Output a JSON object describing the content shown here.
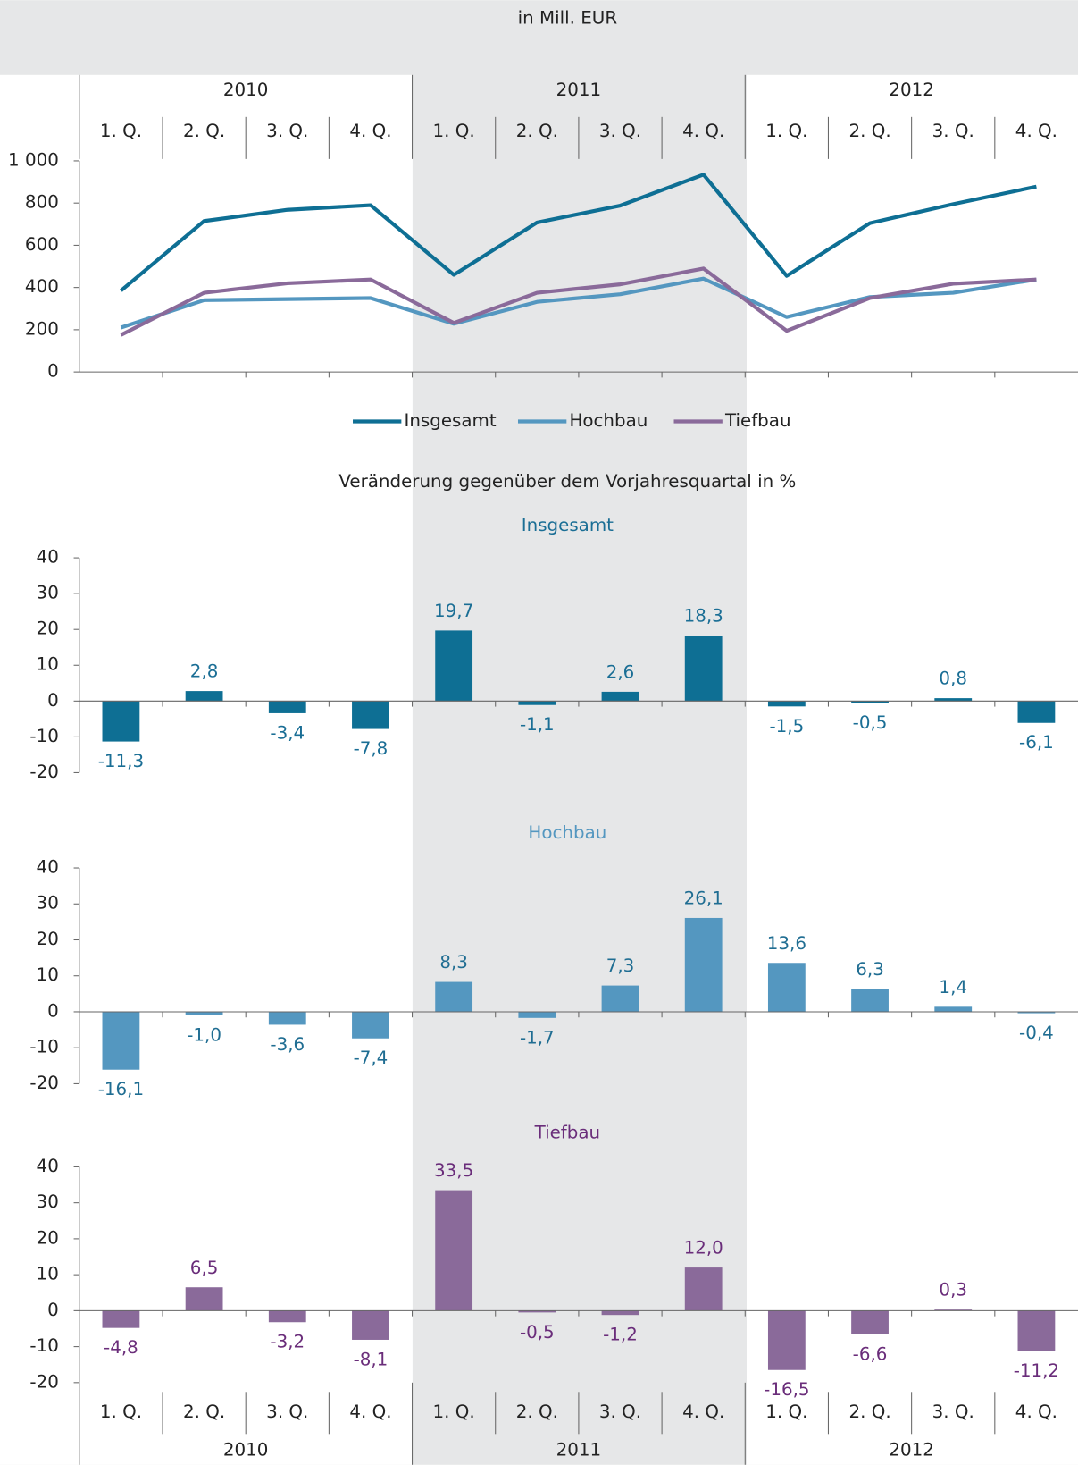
{
  "chart_data": [
    {
      "type": "line",
      "title": "in Mill. EUR",
      "years": [
        "2010",
        "2011",
        "2012"
      ],
      "categories": [
        "1. Q.",
        "2. Q.",
        "3. Q.",
        "4. Q.",
        "1. Q.",
        "2. Q.",
        "3. Q.",
        "4. Q.",
        "1. Q.",
        "2. Q.",
        "3. Q.",
        "4. Q."
      ],
      "series": [
        {
          "name": "Insgesamt",
          "color": "#0e6f94",
          "values": [
            385,
            715,
            768,
            790,
            460,
            708,
            788,
            935,
            455,
            705,
            795,
            878
          ]
        },
        {
          "name": "Hochbau",
          "color": "#5497c0",
          "values": [
            210,
            340,
            345,
            350,
            228,
            332,
            368,
            442,
            260,
            355,
            375,
            438
          ]
        },
        {
          "name": "Tiefbau",
          "color": "#8a6a9a",
          "values": [
            175,
            375,
            420,
            438,
            232,
            375,
            415,
            490,
            195,
            350,
            418,
            438
          ]
        }
      ],
      "ylim": [
        0,
        1000
      ],
      "yticks": [
        0,
        200,
        400,
        600,
        800,
        {
          "value": 1000,
          "label": "1 000"
        }
      ],
      "legend": "bottom"
    },
    {
      "type": "bar",
      "subtitle": "Veränderung gegenüber dem Vorjahresquartal in %",
      "title": "Insgesamt",
      "color": "#0e6f94",
      "label_color": "#1a6e95",
      "values": [
        -11.3,
        2.8,
        -3.4,
        -7.8,
        19.7,
        -1.1,
        2.6,
        18.3,
        -1.5,
        -0.5,
        0.8,
        -6.1
      ],
      "value_labels": [
        "-11,3",
        "2,8",
        "-3,4",
        "-7,8",
        "19,7",
        "-1,1",
        "2,6",
        "18,3",
        "-1,5",
        "-0,5",
        "0,8",
        "-6,1"
      ],
      "ylim": [
        -20,
        40
      ],
      "yticks": [
        -20,
        -10,
        0,
        10,
        20,
        30,
        40
      ]
    },
    {
      "type": "bar",
      "title": "Hochbau",
      "color": "#5497c0",
      "label_color": "#1f6d92",
      "values": [
        -16.1,
        -1.0,
        -3.6,
        -7.4,
        8.3,
        -1.7,
        7.3,
        26.1,
        13.6,
        6.3,
        1.4,
        -0.4
      ],
      "value_labels": [
        "-16,1",
        "-1,0",
        "-3,6",
        "-7,4",
        "8,3",
        "-1,7",
        "7,3",
        "26,1",
        "13,6",
        "6,3",
        "1,4",
        "-0,4"
      ],
      "ylim": [
        -20,
        40
      ],
      "yticks": [
        -20,
        -10,
        0,
        10,
        20,
        30,
        40
      ]
    },
    {
      "type": "bar",
      "title": "Tiefbau",
      "color": "#8a6a9a",
      "label_color": "#6a2d7a",
      "values": [
        -4.8,
        6.5,
        -3.2,
        -8.1,
        33.5,
        -0.5,
        -1.2,
        12.0,
        -16.5,
        -6.6,
        0.3,
        -11.2
      ],
      "value_labels": [
        "-4,8",
        "6,5",
        "-3,2",
        "-8,1",
        "33,5",
        "-0,5",
        "-1,2",
        "12,0",
        "-16,5",
        "-6,6",
        "0,3",
        "-11,2"
      ],
      "ylim": [
        -20,
        40
      ],
      "yticks": [
        -20,
        -10,
        0,
        10,
        20,
        30,
        40
      ],
      "years": [
        "2010",
        "2011",
        "2012"
      ],
      "categories": [
        "1. Q.",
        "2. Q.",
        "3. Q.",
        "4. Q.",
        "1. Q.",
        "2. Q.",
        "3. Q.",
        "4. Q.",
        "1. Q.",
        "2. Q.",
        "3. Q.",
        "4. Q."
      ]
    }
  ]
}
